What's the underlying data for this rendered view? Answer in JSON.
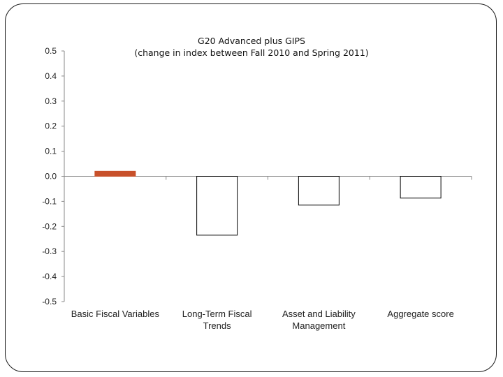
{
  "chart_data": {
    "type": "bar",
    "title": [
      "G20 Advanced plus GIPS",
      "(change in index between Fall 2010 and Spring 2011)"
    ],
    "categories": [
      [
        "Basic Fiscal Variables"
      ],
      [
        "Long-Term Fiscal",
        "Trends"
      ],
      [
        "Asset and Liability",
        "Management"
      ],
      [
        "Aggregate score"
      ]
    ],
    "values": [
      0.02,
      -0.235,
      -0.115,
      -0.087
    ],
    "ylim": [
      -0.5,
      0.5
    ],
    "yticks": [
      0.5,
      0.4,
      0.3,
      0.2,
      0.1,
      0.0,
      -0.1,
      -0.2,
      -0.3,
      -0.4,
      -0.5
    ],
    "ytick_labels": [
      "0.5",
      "0.4",
      "0.3",
      "0.2",
      "0.1",
      "0.0",
      "-0.1",
      "-0.2",
      "-0.3",
      "-0.4",
      "-0.5"
    ],
    "xlabel": "",
    "ylabel": "",
    "grid": false,
    "legend": "none",
    "bar_colors": [
      "#c8502a",
      "#ffffff",
      "#ffffff",
      "#ffffff"
    ],
    "bar_edge_colors": [
      "#c8502a",
      "#000000",
      "#000000",
      "#000000"
    ]
  }
}
